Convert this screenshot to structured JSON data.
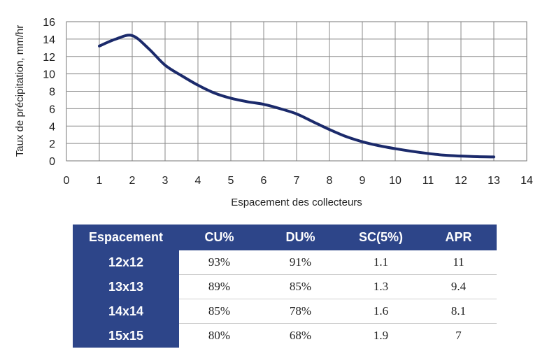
{
  "chart_data": {
    "type": "line",
    "xlabel": "Espacement des collecteurs",
    "ylabel": "Taux de précipitation, mm/hr",
    "xlim": [
      0,
      14
    ],
    "ylim": [
      0,
      16
    ],
    "xticks": [
      0,
      1,
      2,
      3,
      4,
      5,
      6,
      7,
      8,
      9,
      10,
      11,
      12,
      13,
      14
    ],
    "yticks": [
      0,
      2,
      4,
      6,
      8,
      10,
      12,
      14,
      16
    ],
    "grid": true,
    "line_color": "#1b2a6b",
    "series": [
      {
        "x": [
          1,
          1.5,
          2,
          2.5,
          3,
          3.5,
          4,
          4.5,
          5,
          5.5,
          6,
          6.5,
          7,
          7.5,
          8,
          8.5,
          9,
          9.5,
          10,
          10.5,
          11,
          11.5,
          12,
          12.5,
          13
        ],
        "y": [
          13.2,
          14.0,
          14.4,
          12.9,
          11.0,
          9.8,
          8.7,
          7.8,
          7.2,
          6.8,
          6.5,
          6.0,
          5.4,
          4.5,
          3.6,
          2.8,
          2.2,
          1.75,
          1.4,
          1.1,
          0.85,
          0.65,
          0.55,
          0.48,
          0.45
        ]
      }
    ]
  },
  "table": {
    "header_color": "#2d4589",
    "headers": [
      "Espacement",
      "CU%",
      "DU%",
      "SC(5%)",
      "APR"
    ],
    "rows": [
      [
        "12x12",
        "93%",
        "91%",
        "1.1",
        "11"
      ],
      [
        "13x13",
        "89%",
        "85%",
        "1.3",
        "9.4"
      ],
      [
        "14x14",
        "85%",
        "78%",
        "1.6",
        "8.1"
      ],
      [
        "15x15",
        "80%",
        "68%",
        "1.9",
        "7"
      ]
    ]
  }
}
